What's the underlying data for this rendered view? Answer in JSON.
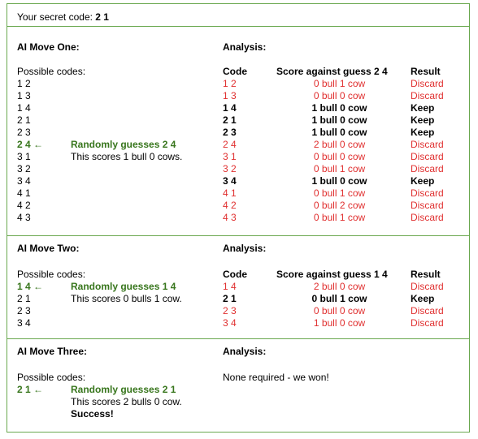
{
  "secret": {
    "label": "Your secret code:",
    "value": "2 1"
  },
  "headers": {
    "code": "Code",
    "result": "Result",
    "analysis": "Analysis:",
    "possible": "Possible codes:"
  },
  "moves": [
    {
      "title": "AI Move One:",
      "score_header": "Score against guess 2 4",
      "guess_note": "Randomly guesses 2 4",
      "score_note": "This scores 1 bull 0 cows.",
      "rows": [
        {
          "code": "1 2",
          "pick": false,
          "score": "0 bull 1 cow",
          "result": "Discard"
        },
        {
          "code": "1 3",
          "pick": false,
          "score": "0 bull 0 cow",
          "result": "Discard"
        },
        {
          "code": "1 4",
          "pick": false,
          "score": "1 bull 0 cow",
          "result": "Keep"
        },
        {
          "code": "2 1",
          "pick": false,
          "score": "1 bull 0 cow",
          "result": "Keep"
        },
        {
          "code": "2 3",
          "pick": false,
          "score": "1 bull 0 cow",
          "result": "Keep"
        },
        {
          "code": "2 4 ←",
          "pick": true,
          "score": "2 bull 0 cow",
          "result": "Discard"
        },
        {
          "code": "3 1",
          "pick": false,
          "score": "0 bull 0 cow",
          "result": "Discard"
        },
        {
          "code": "3 2",
          "pick": false,
          "score": "0 bull 1 cow",
          "result": "Discard"
        },
        {
          "code": "3 4",
          "pick": false,
          "score": "1 bull 0 cow",
          "result": "Keep"
        },
        {
          "code": "4 1",
          "pick": false,
          "score": "0 bull 1 cow",
          "result": "Discard"
        },
        {
          "code": "4 2",
          "pick": false,
          "score": "0 bull 2 cow",
          "result": "Discard"
        },
        {
          "code": "4 3",
          "pick": false,
          "score": "0 bull 1 cow",
          "result": "Discard"
        }
      ]
    },
    {
      "title": "AI Move Two:",
      "score_header": "Score against guess 1 4",
      "guess_note": "Randomly guesses 1 4",
      "score_note": "This scores 0 bulls 1 cow.",
      "rows": [
        {
          "code": "1 4 ←",
          "pick": true,
          "score": "2 bull 0 cow",
          "result": "Discard"
        },
        {
          "code": "2 1",
          "pick": false,
          "score": "0 bull 1 cow",
          "result": "Keep"
        },
        {
          "code": "2 3",
          "pick": false,
          "score": "0 bull 0 cow",
          "result": "Discard"
        },
        {
          "code": "3 4",
          "pick": false,
          "score": "1 bull 0 cow",
          "result": "Discard"
        }
      ]
    },
    {
      "title": "AI Move Three:",
      "guess_note": "Randomly guesses 2 1",
      "score_note": "This scores 2 bulls 0 cow.",
      "success": "Success!",
      "code": "2 1 ←",
      "analysis_text": "None required - we won!"
    }
  ]
}
